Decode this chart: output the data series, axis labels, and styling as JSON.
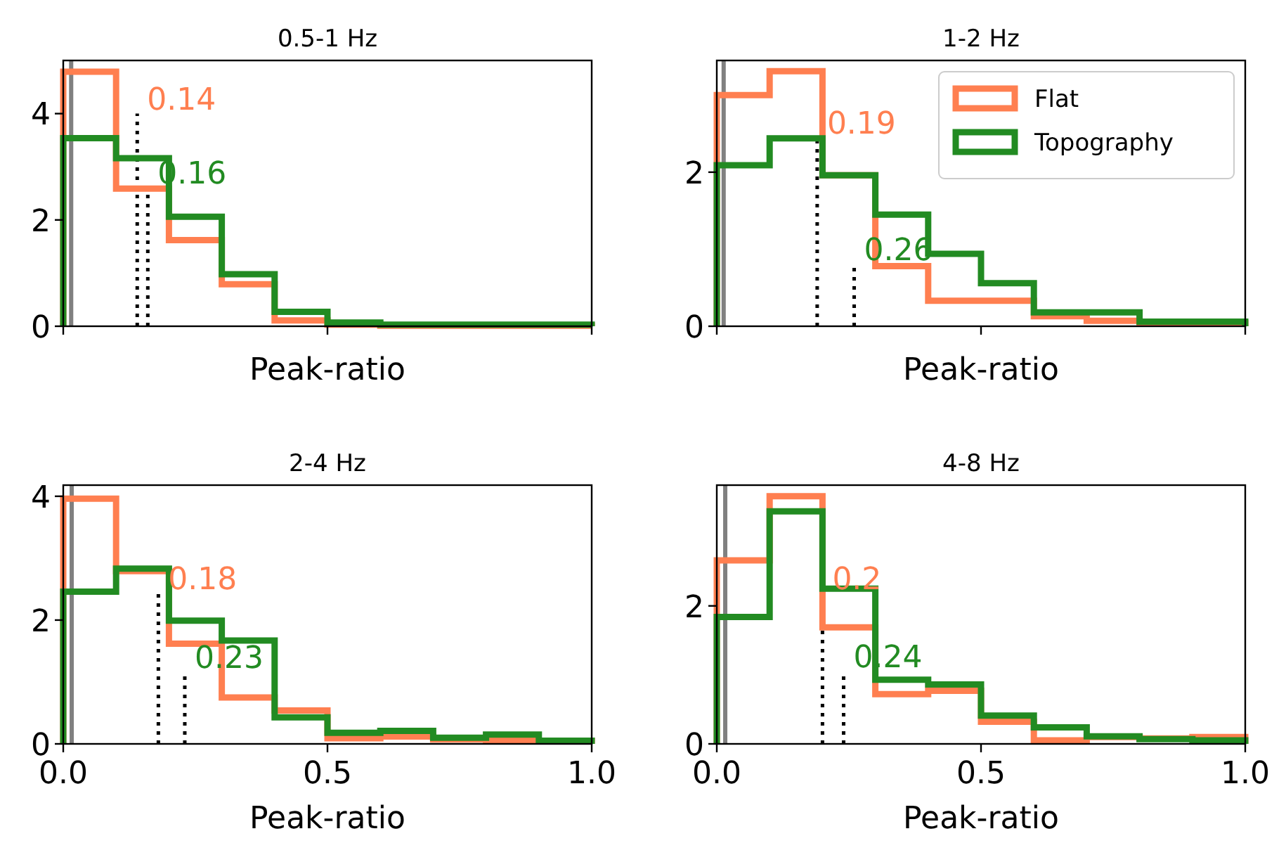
{
  "chart_data": [
    {
      "type": "histogram",
      "title": "0.5-1 Hz",
      "xlabel": "Peak-ratio",
      "bins": [
        0,
        0.1,
        0.2,
        0.3,
        0.4,
        0.5,
        0.6,
        0.7,
        0.8,
        0.9,
        1.0
      ],
      "series": [
        {
          "color": "#ff7f50",
          "values": [
            4.79,
            2.59,
            1.62,
            0.79,
            0.11,
            0.03,
            0.01,
            0.01,
            0.01,
            0.01
          ]
        },
        {
          "color": "#228b22",
          "values": [
            3.54,
            3.16,
            2.06,
            0.98,
            0.27,
            0.07,
            0.03,
            0.03,
            0.03,
            0.03
          ]
        }
      ],
      "xlim": [
        0,
        1
      ],
      "xticks": [
        {
          "value": 0,
          "label": null
        },
        {
          "value": 0.5,
          "label": null
        },
        {
          "value": 1,
          "label": null
        }
      ],
      "ylim": [
        0,
        5
      ],
      "yticks": [
        0,
        2,
        4
      ],
      "tick_labels": "y",
      "legend": false,
      "ref_lines": [
        {
          "axis": "x",
          "value": 0.015,
          "color": "#808080",
          "line_style": "solid"
        },
        {
          "axis": "x",
          "value": 0.14,
          "color": "#000000",
          "line_style": "dotted"
        },
        {
          "axis": "x",
          "value": 0.16,
          "color": "#000000",
          "line_style": "dotted"
        }
      ],
      "annotations": [
        {
          "text": "0.14",
          "x": 0.14,
          "y": 4.0
        },
        {
          "text": "0.16",
          "x": 0.16,
          "y": 2.6
        }
      ]
    },
    {
      "type": "histogram",
      "title": "1-2 Hz",
      "xlabel": "Peak-ratio",
      "bins": [
        0,
        0.1,
        0.2,
        0.3,
        0.4,
        0.5,
        0.6,
        0.7,
        0.8,
        0.9,
        1.0
      ],
      "series": [
        {
          "name": "Flat",
          "color": "#ff7f50",
          "values": [
            3.0,
            3.31,
            1.96,
            0.78,
            0.33,
            0.33,
            0.13,
            0.07,
            0.04,
            0.04
          ]
        },
        {
          "name": "Topography",
          "color": "#228b22",
          "values": [
            2.09,
            2.44,
            1.96,
            1.45,
            0.94,
            0.56,
            0.18,
            0.18,
            0.06,
            0.06
          ]
        }
      ],
      "xlim": [
        0,
        1
      ],
      "xticks": [
        {
          "value": 0,
          "label": null
        },
        {
          "value": 0.5,
          "label": null
        },
        {
          "value": 1,
          "label": null
        }
      ],
      "ylim": [
        0,
        3.45
      ],
      "yticks": [
        0,
        2
      ],
      "tick_labels": "y",
      "legend": "top right",
      "ref_lines": [
        {
          "axis": "x",
          "value": 0.013,
          "color": "#808080",
          "line_style": "solid"
        },
        {
          "axis": "x",
          "value": 0.19,
          "color": "#000000",
          "line_style": "dotted"
        },
        {
          "axis": "x",
          "value": 0.26,
          "color": "#000000",
          "line_style": "dotted"
        }
      ],
      "annotations": [
        {
          "text": "0.19",
          "x": 0.19,
          "y": 2.45
        },
        {
          "text": "0.26",
          "x": 0.26,
          "y": 0.8
        }
      ]
    },
    {
      "type": "histogram",
      "title": "2-4 Hz",
      "xlabel": "Peak-ratio",
      "bins": [
        0,
        0.1,
        0.2,
        0.3,
        0.4,
        0.5,
        0.6,
        0.7,
        0.8,
        0.9,
        1.0
      ],
      "series": [
        {
          "color": "#ff7f50",
          "values": [
            3.96,
            2.79,
            1.62,
            0.75,
            0.54,
            0.09,
            0.12,
            0.07,
            0.05,
            0.05
          ]
        },
        {
          "color": "#228b22",
          "values": [
            2.46,
            2.83,
            1.99,
            1.67,
            0.43,
            0.18,
            0.21,
            0.1,
            0.15,
            0.05
          ]
        }
      ],
      "xlim": [
        0,
        1
      ],
      "xticks": [
        {
          "value": 0,
          "label": "0.0"
        },
        {
          "value": 0.5,
          "label": "0.5"
        },
        {
          "value": 1,
          "label": "1.0"
        }
      ],
      "ylim": [
        0,
        4.18
      ],
      "yticks": [
        0,
        2,
        4
      ],
      "legend": false,
      "ref_lines": [
        {
          "axis": "x",
          "value": 0.016,
          "color": "#808080",
          "line_style": "solid"
        },
        {
          "axis": "x",
          "value": 0.18,
          "color": "#000000",
          "line_style": "dotted"
        },
        {
          "axis": "x",
          "value": 0.23,
          "color": "#000000",
          "line_style": "dotted"
        }
      ],
      "annotations": [
        {
          "text": "0.18",
          "x": 0.18,
          "y": 2.43
        },
        {
          "text": "0.23",
          "x": 0.23,
          "y": 1.16
        }
      ]
    },
    {
      "type": "histogram",
      "title": "4-8 Hz",
      "xlabel": "Peak-ratio",
      "bins": [
        0,
        0.1,
        0.2,
        0.3,
        0.4,
        0.5,
        0.6,
        0.7,
        0.8,
        0.9,
        1.0
      ],
      "series": [
        {
          "color": "#ff7f50",
          "values": [
            2.66,
            3.59,
            1.69,
            0.72,
            0.77,
            0.32,
            0.05,
            0.1,
            0.08,
            0.1
          ]
        },
        {
          "color": "#228b22",
          "values": [
            1.84,
            3.37,
            2.25,
            0.93,
            0.86,
            0.41,
            0.24,
            0.11,
            0.07,
            0.05
          ]
        }
      ],
      "xlim": [
        0,
        1
      ],
      "xticks": [
        {
          "value": 0,
          "label": "0.0"
        },
        {
          "value": 0.5,
          "label": "0.5"
        },
        {
          "value": 1,
          "label": "1.0"
        }
      ],
      "ylim": [
        0,
        3.75
      ],
      "yticks": [
        0,
        2
      ],
      "legend": false,
      "ref_lines": [
        {
          "axis": "x",
          "value": 0.016,
          "color": "#808080",
          "line_style": "solid"
        },
        {
          "axis": "x",
          "value": 0.2,
          "color": "#000000",
          "line_style": "dotted"
        },
        {
          "axis": "x",
          "value": 0.24,
          "color": "#000000",
          "line_style": "dotted"
        }
      ],
      "annotations": [
        {
          "text": "0.2",
          "x": 0.2,
          "y": 2.18
        },
        {
          "text": "0.24",
          "x": 0.24,
          "y": 1.05
        }
      ]
    }
  ]
}
